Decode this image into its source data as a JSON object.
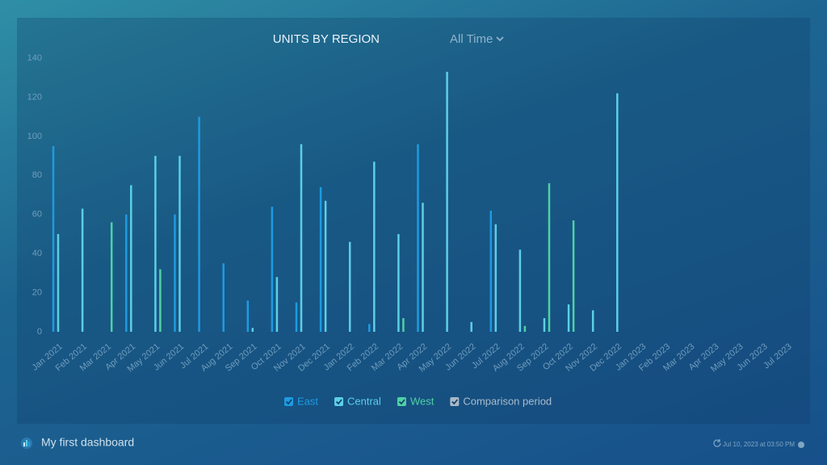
{
  "chart_data": {
    "type": "bar",
    "title": "UNITS BY REGION",
    "categories": [
      "Jan 2021",
      "Feb 2021",
      "Mar 2021",
      "Apr 2021",
      "May 2021",
      "Jun 2021",
      "Jul 2021",
      "Aug 2021",
      "Sep 2021",
      "Oct 2021",
      "Nov 2021",
      "Dec 2021",
      "Jan 2022",
      "Feb 2022",
      "Mar 2022",
      "Apr 2022",
      "May 2022",
      "Jun 2022",
      "Jul 2022",
      "Aug 2022",
      "Sep 2022",
      "Oct 2022",
      "Nov 2022",
      "Dec 2022",
      "Jan 2023",
      "Feb 2023",
      "Mar 2023",
      "Apr 2023",
      "May 2023",
      "Jun 2023",
      "Jul 2023"
    ],
    "series": [
      {
        "name": "East",
        "color": "#1e9be0",
        "values": [
          95,
          null,
          null,
          60,
          null,
          60,
          110,
          35,
          16,
          64,
          15,
          74,
          null,
          4,
          null,
          96,
          null,
          null,
          62,
          null,
          null,
          null,
          null,
          null,
          null,
          null,
          null,
          null,
          null,
          null,
          null
        ]
      },
      {
        "name": "Central",
        "color": "#5ccfe6",
        "values": [
          50,
          63,
          null,
          75,
          90,
          90,
          null,
          null,
          2,
          28,
          96,
          67,
          46,
          87,
          50,
          66,
          133,
          5,
          55,
          42,
          7,
          14,
          11,
          122,
          null,
          null,
          null,
          null,
          null,
          null,
          null
        ]
      },
      {
        "name": "West",
        "color": "#4fd1a5",
        "values": [
          null,
          null,
          56,
          null,
          32,
          null,
          null,
          null,
          null,
          null,
          null,
          null,
          null,
          null,
          7,
          null,
          null,
          null,
          null,
          3,
          76,
          57,
          null,
          null,
          null,
          null,
          null,
          null,
          null,
          null,
          null
        ]
      }
    ],
    "comparison": {
      "name": "Comparison period",
      "color": "#a9b8c6"
    },
    "ylim": [
      0,
      140
    ],
    "yticks": [
      0,
      20,
      40,
      60,
      80,
      100,
      120,
      140
    ],
    "grid": false
  },
  "filter": "All Time",
  "footer": {
    "dashboard": "My first dashboard",
    "timestamp": "Jul 10, 2023 at 03:50 PM"
  }
}
